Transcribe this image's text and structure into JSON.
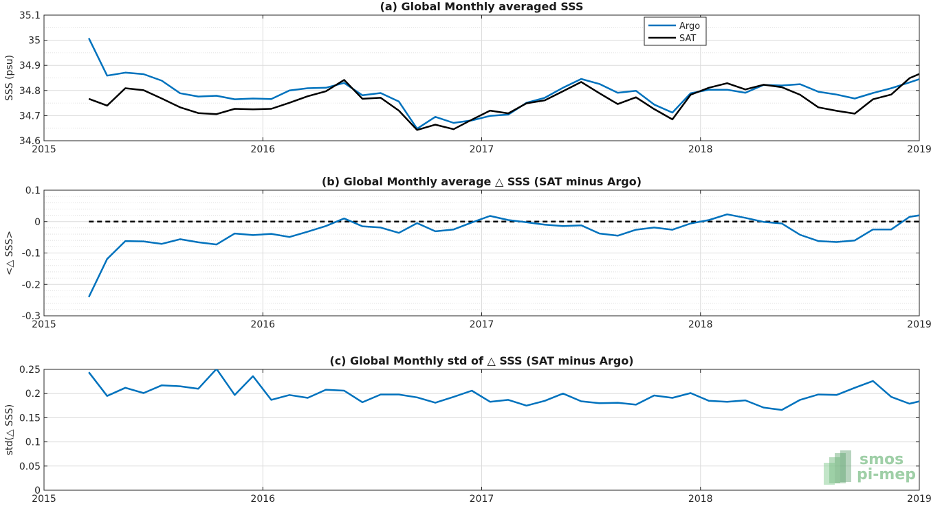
{
  "chart_data": [
    {
      "type": "line",
      "title": "(a) Global Monthly averaged SSS",
      "xlabel": "",
      "ylabel": "SSS (psu)",
      "xlim": [
        "2015-01-01",
        "2019-01-01"
      ],
      "ylim": [
        34.6,
        35.1
      ],
      "yticks": [
        34.6,
        34.7,
        34.8,
        34.9,
        35,
        35.1
      ],
      "ytick_labels": [
        "34.6",
        "34.7",
        "34.8",
        "34.9",
        "35",
        "35.1"
      ],
      "xticks": [
        "2015-01-01",
        "2016-01-01",
        "2017-01-01",
        "2018-01-01",
        "2019-01-01"
      ],
      "xtick_labels": [
        "2015",
        "2016",
        "2017",
        "2018",
        "2019"
      ],
      "grid": true,
      "minor_grid": true,
      "legend_position": "top-right",
      "x": [
        "2015-03",
        "2015-04",
        "2015-05",
        "2015-06",
        "2015-07",
        "2015-08",
        "2015-09",
        "2015-10",
        "2015-11",
        "2015-12",
        "2016-01",
        "2016-02",
        "2016-03",
        "2016-04",
        "2016-05",
        "2016-06",
        "2016-07",
        "2016-08",
        "2016-09",
        "2016-10",
        "2016-11",
        "2016-12",
        "2017-01",
        "2017-02",
        "2017-03",
        "2017-04",
        "2017-05",
        "2017-06",
        "2017-07",
        "2017-08",
        "2017-09",
        "2017-10",
        "2017-11",
        "2017-12",
        "2018-01",
        "2018-02",
        "2018-03",
        "2018-04",
        "2018-05",
        "2018-06",
        "2018-07",
        "2018-08",
        "2018-09",
        "2018-10",
        "2018-11",
        "2018-12",
        "2019-01"
      ],
      "series": [
        {
          "name": "Argo",
          "color": "#0072BD",
          "values": [
            35.008,
            34.859,
            34.871,
            34.865,
            34.839,
            34.789,
            34.776,
            34.779,
            34.765,
            34.768,
            34.766,
            34.8,
            34.809,
            34.811,
            34.83,
            34.781,
            34.79,
            34.756,
            34.648,
            34.695,
            34.671,
            34.681,
            34.699,
            34.704,
            34.751,
            34.771,
            34.811,
            34.846,
            34.826,
            34.791,
            34.799,
            34.744,
            34.712,
            34.789,
            34.803,
            34.803,
            34.791,
            34.822,
            34.82,
            34.825,
            34.795,
            34.784,
            34.768,
            34.79,
            34.809,
            34.832,
            34.856
          ]
        },
        {
          "name": "SAT",
          "color": "#000000",
          "values": [
            34.767,
            34.74,
            34.809,
            34.801,
            34.768,
            34.733,
            34.71,
            34.706,
            34.727,
            34.725,
            34.727,
            34.751,
            34.777,
            34.797,
            34.842,
            34.767,
            34.771,
            34.72,
            34.643,
            34.664,
            34.646,
            34.684,
            34.72,
            34.709,
            34.749,
            34.761,
            34.797,
            34.834,
            34.789,
            34.746,
            34.773,
            34.726,
            34.685,
            34.783,
            34.811,
            34.829,
            34.804,
            34.823,
            34.813,
            34.783,
            34.733,
            34.719,
            34.708,
            34.765,
            34.784,
            34.849,
            34.88
          ]
        }
      ]
    },
    {
      "type": "line",
      "title": "(b) Global Monthly average △ SSS (SAT minus Argo)",
      "xlabel": "",
      "ylabel": "<△ SSS>",
      "xlim": [
        "2015-01-01",
        "2019-01-01"
      ],
      "ylim": [
        -0.3,
        0.1
      ],
      "yticks": [
        -0.3,
        -0.2,
        -0.1,
        0,
        0.1
      ],
      "ytick_labels": [
        "-0.3",
        "-0.2",
        "-0.1",
        "0",
        "0.1"
      ],
      "xticks": [
        "2015-01-01",
        "2016-01-01",
        "2017-01-01",
        "2018-01-01",
        "2019-01-01"
      ],
      "xtick_labels": [
        "2015",
        "2016",
        "2017",
        "2018",
        "2019"
      ],
      "grid": true,
      "minor_grid": true,
      "reference_line": {
        "y": 0,
        "style": "dashed",
        "color": "#000000"
      },
      "x": [
        "2015-03",
        "2015-04",
        "2015-05",
        "2015-06",
        "2015-07",
        "2015-08",
        "2015-09",
        "2015-10",
        "2015-11",
        "2015-12",
        "2016-01",
        "2016-02",
        "2016-03",
        "2016-04",
        "2016-05",
        "2016-06",
        "2016-07",
        "2016-08",
        "2016-09",
        "2016-10",
        "2016-11",
        "2016-12",
        "2017-01",
        "2017-02",
        "2017-03",
        "2017-04",
        "2017-05",
        "2017-06",
        "2017-07",
        "2017-08",
        "2017-09",
        "2017-10",
        "2017-11",
        "2017-12",
        "2018-01",
        "2018-02",
        "2018-03",
        "2018-04",
        "2018-05",
        "2018-06",
        "2018-07",
        "2018-08",
        "2018-09",
        "2018-10",
        "2018-11",
        "2018-12",
        "2019-01"
      ],
      "series": [
        {
          "name": "",
          "color": "#0072BD",
          "values": [
            -0.24,
            -0.119,
            -0.062,
            -0.063,
            -0.071,
            -0.056,
            -0.066,
            -0.073,
            -0.038,
            -0.043,
            -0.039,
            -0.049,
            -0.032,
            -0.014,
            0.01,
            -0.015,
            -0.019,
            -0.036,
            -0.005,
            -0.031,
            -0.025,
            -0.003,
            0.018,
            0.005,
            -0.002,
            -0.01,
            -0.014,
            -0.012,
            -0.038,
            -0.045,
            -0.026,
            -0.019,
            -0.026,
            -0.006,
            0.005,
            0.023,
            0.012,
            -0.001,
            -0.006,
            -0.042,
            -0.062,
            -0.065,
            -0.06,
            -0.025,
            -0.025,
            0.015,
            0.024
          ]
        }
      ]
    },
    {
      "type": "line",
      "title": "(c) Global Monthly std of △ SSS (SAT minus Argo)",
      "xlabel": "",
      "ylabel": "std(△ SSS)",
      "xlim": [
        "2015-01-01",
        "2019-01-01"
      ],
      "ylim": [
        0,
        0.25
      ],
      "yticks": [
        0,
        0.05,
        0.1,
        0.15,
        0.2,
        0.25
      ],
      "ytick_labels": [
        "0",
        "0.05",
        "0.1",
        "0.15",
        "0.2",
        "0.25"
      ],
      "xticks": [
        "2015-01-01",
        "2016-01-01",
        "2017-01-01",
        "2018-01-01",
        "2019-01-01"
      ],
      "xtick_labels": [
        "2015",
        "2016",
        "2017",
        "2018",
        "2019"
      ],
      "grid": true,
      "minor_grid": false,
      "x": [
        "2015-03",
        "2015-04",
        "2015-05",
        "2015-06",
        "2015-07",
        "2015-08",
        "2015-09",
        "2015-10",
        "2015-11",
        "2015-12",
        "2016-01",
        "2016-02",
        "2016-03",
        "2016-04",
        "2016-05",
        "2016-06",
        "2016-07",
        "2016-08",
        "2016-09",
        "2016-10",
        "2016-11",
        "2016-12",
        "2017-01",
        "2017-02",
        "2017-03",
        "2017-04",
        "2017-05",
        "2017-06",
        "2017-07",
        "2017-08",
        "2017-09",
        "2017-10",
        "2017-11",
        "2017-12",
        "2018-01",
        "2018-02",
        "2018-03",
        "2018-04",
        "2018-05",
        "2018-06",
        "2018-07",
        "2018-08",
        "2018-09",
        "2018-10",
        "2018-11",
        "2018-12",
        "2019-01"
      ],
      "series": [
        {
          "name": "",
          "color": "#0072BD",
          "values": [
            0.244,
            0.195,
            0.212,
            0.201,
            0.217,
            0.215,
            0.21,
            0.251,
            0.197,
            0.236,
            0.187,
            0.197,
            0.191,
            0.208,
            0.206,
            0.182,
            0.198,
            0.198,
            0.192,
            0.181,
            0.193,
            0.206,
            0.183,
            0.187,
            0.175,
            0.185,
            0.2,
            0.184,
            0.18,
            0.181,
            0.177,
            0.196,
            0.191,
            0.201,
            0.185,
            0.183,
            0.186,
            0.171,
            0.166,
            0.187,
            0.198,
            0.197,
            0.212,
            0.226,
            0.193,
            0.179,
            0.188
          ]
        }
      ]
    }
  ],
  "logo": {
    "line1": "smos",
    "line2": "pi-mep"
  }
}
